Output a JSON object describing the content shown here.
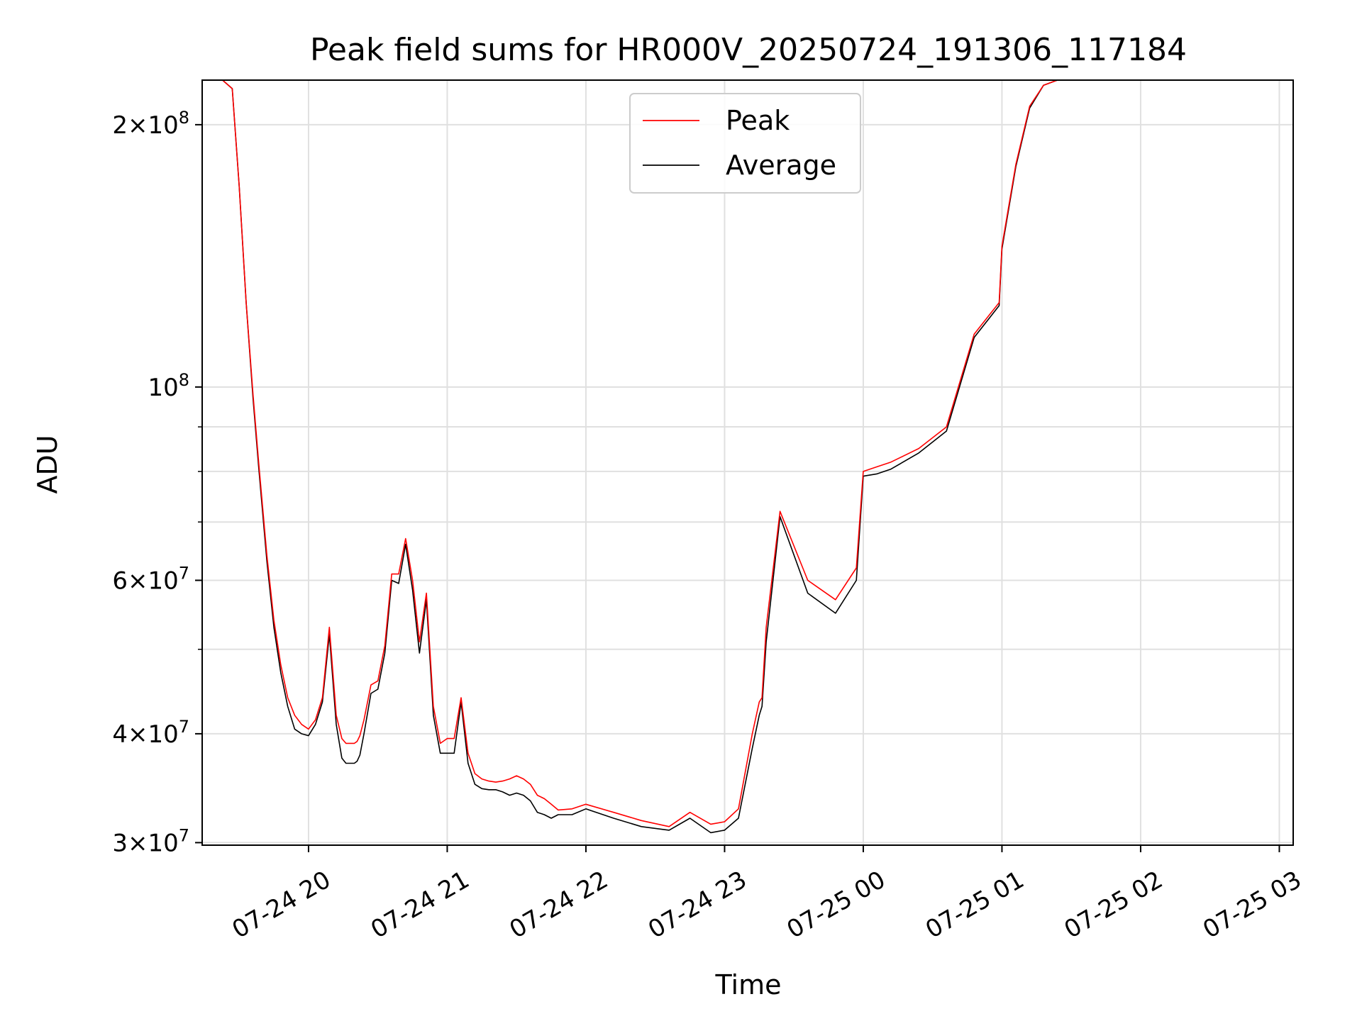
{
  "chart_data": {
    "type": "line",
    "title": "Peak field sums for HR000V_20250724_191306_117184",
    "xlabel": "Time",
    "ylabel": "ADU",
    "x_ticks": [
      "07-24 20",
      "07-24 21",
      "07-24 22",
      "07-24 23",
      "07-25 00",
      "07-25 01",
      "07-25 02",
      "07-25 03"
    ],
    "y_scale": "log",
    "y_ticks": [
      {
        "value": 30000000,
        "coef": "3",
        "exp": "7"
      },
      {
        "value": 40000000,
        "coef": "4",
        "exp": "7"
      },
      {
        "value": 60000000,
        "coef": "6",
        "exp": "7"
      },
      {
        "value": 100000000,
        "coef": "",
        "exp": "8"
      },
      {
        "value": 200000000,
        "coef": "2",
        "exp": "8"
      }
    ],
    "y_minor_ticks": [
      50000000,
      70000000,
      80000000,
      90000000
    ],
    "xlim_hours": [
      -0.767,
      7.1
    ],
    "ylim": [
      29800000,
      225000000
    ],
    "x_unit": "hours after 2025-07-24 20:00",
    "grid": true,
    "legend_position": "upper center",
    "series": [
      {
        "name": "Peak",
        "color": "#ff0000",
        "x": [
          -0.77,
          -0.62,
          -0.55,
          -0.5,
          -0.45,
          -0.4,
          -0.36,
          -0.3,
          -0.25,
          -0.2,
          -0.15,
          -0.1,
          -0.05,
          0.0,
          0.05,
          0.1,
          0.15,
          0.2,
          0.24,
          0.27,
          0.3,
          0.33,
          0.35,
          0.37,
          0.4,
          0.45,
          0.5,
          0.55,
          0.6,
          0.65,
          0.7,
          0.75,
          0.8,
          0.85,
          0.9,
          0.95,
          1.0,
          1.05,
          1.1,
          1.15,
          1.2,
          1.25,
          1.3,
          1.35,
          1.4,
          1.45,
          1.5,
          1.55,
          1.6,
          1.65,
          1.7,
          1.75,
          1.8,
          1.9,
          2.0,
          2.2,
          2.4,
          2.6,
          2.75,
          2.9,
          3.0,
          3.1,
          3.2,
          3.25,
          3.27,
          3.3,
          3.4,
          3.6,
          3.8,
          3.95,
          4.0,
          4.1,
          4.2,
          4.4,
          4.6,
          4.8,
          4.98,
          5.0,
          5.1,
          5.2,
          5.3,
          5.4,
          5.5,
          5.6,
          5.7,
          5.8,
          5.9,
          6.0,
          6.05,
          6.1,
          6.2,
          6.3,
          6.4,
          6.45,
          6.5,
          6.55,
          6.6,
          6.65,
          6.7,
          6.75,
          6.8,
          6.85,
          6.9,
          6.95,
          7.0,
          7.1
        ],
        "values": [
          225000000,
          225000000,
          220000000,
          170000000,
          125000000,
          98000000,
          82000000,
          64000000,
          54000000,
          48000000,
          44000000,
          42000000,
          41000000,
          40500000,
          41500000,
          44000000,
          53000000,
          42000000,
          39500000,
          39000000,
          39000000,
          39000000,
          39200000,
          39800000,
          41500000,
          45500000,
          46000000,
          50500000,
          61000000,
          61000000,
          67000000,
          60000000,
          51000000,
          58000000,
          43000000,
          39000000,
          39500000,
          39500000,
          44000000,
          38000000,
          36000000,
          35500000,
          35300000,
          35200000,
          35300000,
          35500000,
          35800000,
          35500000,
          35000000,
          34000000,
          33700000,
          33200000,
          32700000,
          32800000,
          33200000,
          32500000,
          31800000,
          31300000,
          32500000,
          31500000,
          31700000,
          32800000,
          40000000,
          43500000,
          44000000,
          53000000,
          72000000,
          60000000,
          57000000,
          62000000,
          80000000,
          81000000,
          82000000,
          85000000,
          90000000,
          115000000,
          125000000,
          145000000,
          180000000,
          210000000,
          222000000,
          225000000,
          225000000,
          225000000,
          225000000,
          225000000,
          225000000,
          225000000,
          225000000,
          225000000,
          225000000,
          225000000,
          225000000,
          225000000,
          225000000,
          225000000,
          225000000,
          225000000,
          225000000,
          225000000,
          225000000,
          225000000,
          225000000,
          225000000,
          225000000,
          225000000
        ]
      },
      {
        "name": "Average",
        "color": "#000000",
        "x": [
          -0.77,
          -0.62,
          -0.55,
          -0.5,
          -0.45,
          -0.4,
          -0.36,
          -0.3,
          -0.25,
          -0.2,
          -0.15,
          -0.1,
          -0.05,
          0.0,
          0.05,
          0.1,
          0.15,
          0.2,
          0.24,
          0.27,
          0.3,
          0.33,
          0.35,
          0.37,
          0.4,
          0.45,
          0.5,
          0.55,
          0.6,
          0.65,
          0.7,
          0.75,
          0.8,
          0.85,
          0.9,
          0.95,
          1.0,
          1.05,
          1.1,
          1.15,
          1.2,
          1.25,
          1.3,
          1.35,
          1.4,
          1.45,
          1.5,
          1.55,
          1.6,
          1.65,
          1.7,
          1.75,
          1.8,
          1.9,
          2.0,
          2.2,
          2.4,
          2.6,
          2.75,
          2.9,
          3.0,
          3.1,
          3.2,
          3.25,
          3.27,
          3.3,
          3.4,
          3.6,
          3.8,
          3.95,
          4.0,
          4.1,
          4.2,
          4.4,
          4.6,
          4.8,
          4.98,
          5.0,
          5.1,
          5.2,
          5.3,
          5.4,
          5.5,
          5.6,
          5.7,
          5.8,
          5.9,
          6.0,
          6.05,
          6.1,
          6.2,
          6.3,
          6.4,
          6.45,
          6.5,
          6.55,
          6.6,
          6.65,
          6.7,
          6.75,
          6.8,
          6.85,
          6.9,
          6.95,
          7.0,
          7.1
        ],
        "values": [
          225000000,
          225000000,
          220000000,
          170000000,
          125000000,
          97000000,
          81000000,
          63000000,
          53000000,
          47000000,
          43000000,
          40500000,
          40000000,
          39800000,
          41000000,
          43500000,
          52000000,
          41000000,
          37500000,
          37000000,
          37000000,
          37000000,
          37200000,
          37800000,
          40000000,
          44500000,
          45000000,
          49500000,
          60000000,
          59500000,
          66000000,
          58500000,
          49500000,
          57000000,
          42000000,
          38000000,
          38000000,
          38000000,
          43500000,
          37000000,
          35000000,
          34600000,
          34500000,
          34500000,
          34300000,
          34000000,
          34200000,
          34000000,
          33500000,
          32500000,
          32300000,
          32000000,
          32300000,
          32300000,
          32800000,
          32000000,
          31300000,
          31000000,
          32000000,
          30800000,
          31000000,
          32000000,
          38500000,
          42000000,
          43000000,
          51000000,
          71000000,
          58000000,
          55000000,
          60000000,
          79000000,
          79500000,
          80500000,
          84000000,
          89000000,
          114000000,
          124000000,
          144000000,
          179000000,
          209000000,
          222000000,
          225000000,
          225000000,
          225000000,
          225000000,
          225000000,
          225000000,
          225000000,
          225000000,
          225000000,
          225000000,
          225000000,
          225000000,
          225000000,
          225000000,
          225000000,
          225000000,
          225000000,
          225000000,
          225000000,
          225000000,
          225000000,
          225000000,
          225000000,
          225000000,
          225000000
        ]
      }
    ]
  }
}
